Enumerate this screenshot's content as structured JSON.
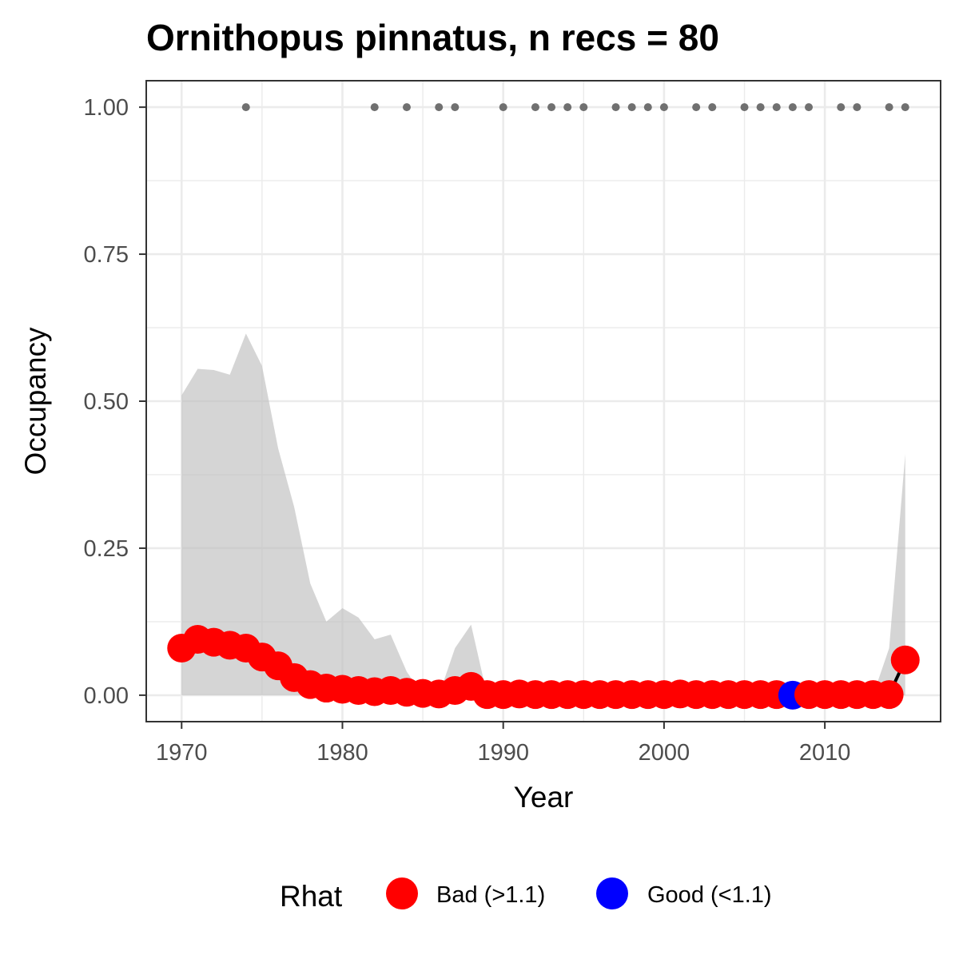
{
  "chart_data": {
    "type": "line",
    "title": "Ornithopus pinnatus, n recs = 80",
    "xlabel": "Year",
    "ylabel": "Occupancy",
    "xlim": [
      1967.8,
      2017.2
    ],
    "ylim": [
      -0.045,
      1.045
    ],
    "x_ticks": [
      1970,
      1980,
      1990,
      2000,
      2010
    ],
    "x_tick_labels": [
      "1970",
      "1980",
      "1990",
      "2000",
      "2010"
    ],
    "y_ticks": [
      0,
      0.25,
      0.5,
      0.75,
      1
    ],
    "y_tick_labels": [
      "0.00",
      "0.25",
      "0.50",
      "0.75",
      "1.00"
    ],
    "grid": true,
    "legend": {
      "title": "Rhat",
      "position": "bottom",
      "entries": [
        {
          "label": "Bad (>1.1)",
          "color": "#ff0000"
        },
        {
          "label": "Good (<1.1)",
          "color": "#0000ff"
        }
      ]
    },
    "colors": {
      "bad": "#ff0000",
      "good": "#0000ff",
      "ribbon": "#bebebe",
      "line": "#000000",
      "records": "#707070",
      "grid": "#ebebeb",
      "panel_border": "#333333"
    },
    "records_years": [
      1974,
      1982,
      1984,
      1986,
      1987,
      1990,
      1992,
      1993,
      1994,
      1995,
      1997,
      1998,
      1999,
      2000,
      2002,
      2003,
      2005,
      2006,
      2007,
      2008,
      2009,
      2011,
      2012,
      2014,
      2015
    ],
    "records_value": 1.0,
    "series": [
      {
        "years": [
          1970,
          1971,
          1972,
          1973,
          1974,
          1975,
          1976,
          1977,
          1978,
          1979,
          1980,
          1981,
          1982,
          1983,
          1984,
          1985,
          1986,
          1987,
          1988,
          1989,
          1990,
          1991,
          1992,
          1993,
          1994,
          1995,
          1996,
          1997,
          1998,
          1999,
          2000,
          2001,
          2002,
          2003,
          2004,
          2005,
          2006,
          2007,
          2008,
          2009,
          2010,
          2011,
          2012,
          2013,
          2014,
          2015
        ],
        "occupancy": [
          0.08,
          0.095,
          0.09,
          0.085,
          0.08,
          0.065,
          0.05,
          0.03,
          0.018,
          0.012,
          0.01,
          0.008,
          0.006,
          0.008,
          0.005,
          0.003,
          0.002,
          0.008,
          0.015,
          0.001,
          0.001,
          0.002,
          0.001,
          0.001,
          0.001,
          0.001,
          0.001,
          0.001,
          0.001,
          0.001,
          0.001,
          0.002,
          0.001,
          0.001,
          0.001,
          0.001,
          0.001,
          0.001,
          0.0,
          0.001,
          0.001,
          0.001,
          0.001,
          0.001,
          0.001,
          0.06
        ],
        "lower": [
          0.0,
          0.0,
          0.0,
          0.0,
          0.0,
          0.0,
          0.0,
          0.0,
          0.0,
          0.0,
          0.0,
          0.0,
          0.0,
          0.0,
          0.0,
          0.0,
          0.0,
          0.0,
          0.0,
          0.0,
          0.0,
          0.0,
          0.0,
          0.0,
          0.0,
          0.0,
          0.0,
          0.0,
          0.0,
          0.0,
          0.0,
          0.0,
          0.0,
          0.0,
          0.0,
          0.0,
          0.0,
          0.0,
          0.0,
          0.0,
          0.0,
          0.0,
          0.0,
          0.0,
          0.0,
          0.0
        ],
        "upper": [
          0.51,
          0.555,
          0.553,
          0.545,
          0.615,
          0.56,
          0.42,
          0.32,
          0.19,
          0.125,
          0.148,
          0.132,
          0.095,
          0.103,
          0.04,
          0.0,
          0.0,
          0.08,
          0.12,
          0.0,
          0.0,
          0.0,
          0.0,
          0.0,
          0.0,
          0.0,
          0.0,
          0.0,
          0.0,
          0.0,
          0.0,
          0.0,
          0.0,
          0.0,
          0.0,
          0.0,
          0.0,
          0.0,
          0.0,
          0.0,
          0.0,
          0.0,
          0.0,
          0.0,
          0.08,
          0.41
        ],
        "rhat_status": [
          "bad",
          "bad",
          "bad",
          "bad",
          "bad",
          "bad",
          "bad",
          "bad",
          "bad",
          "bad",
          "bad",
          "bad",
          "bad",
          "bad",
          "bad",
          "bad",
          "bad",
          "bad",
          "bad",
          "bad",
          "bad",
          "bad",
          "bad",
          "bad",
          "bad",
          "bad",
          "bad",
          "bad",
          "bad",
          "bad",
          "bad",
          "bad",
          "bad",
          "bad",
          "bad",
          "bad",
          "bad",
          "bad",
          "good",
          "bad",
          "bad",
          "bad",
          "bad",
          "bad",
          "bad",
          "bad"
        ]
      }
    ]
  }
}
